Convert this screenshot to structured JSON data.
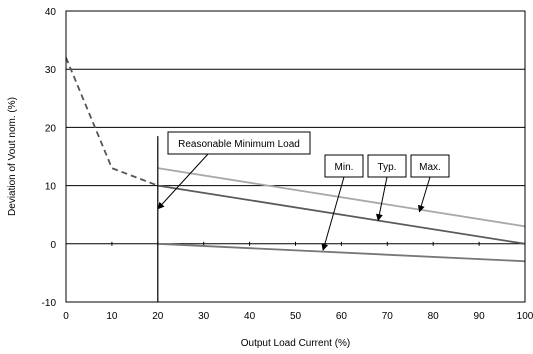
{
  "chart_data": {
    "type": "line",
    "xlabel": "Output Load Current (%)",
    "ylabel": "Deviation of Vout nom. (%)",
    "xlim": [
      0,
      100
    ],
    "ylim": [
      -10,
      40
    ],
    "x_ticks": [
      "0",
      "10",
      "20",
      "30",
      "40",
      "50",
      "60",
      "70",
      "80",
      "90",
      "100"
    ],
    "y_ticks": [
      "-10",
      "0",
      "10",
      "20",
      "30",
      "40"
    ],
    "grid": "horizontal major gridlines",
    "colors": {
      "typ": "#5a5a5a",
      "max": "#a8a8a8",
      "min": "#777777",
      "dashed": "#555555",
      "grid": "#000000"
    },
    "series": [
      {
        "name": "Typ.",
        "x": [
          20,
          100
        ],
        "y": [
          10,
          0
        ]
      },
      {
        "name": "Max.",
        "x": [
          20,
          100
        ],
        "y": [
          13,
          3
        ]
      },
      {
        "name": "Min.",
        "x": [
          20,
          100
        ],
        "y": [
          0,
          -3
        ]
      },
      {
        "x": [
          0,
          10,
          20
        ],
        "y": [
          32,
          13,
          10
        ],
        "style": "dashed"
      }
    ],
    "reference_line": {
      "x": 20,
      "y_from": -10,
      "y_to": 18.5
    },
    "annotations": [
      {
        "text": "Reasonable Minimum Load",
        "points_to": [
          20,
          6
        ]
      },
      {
        "text": "Min.",
        "points_to": [
          56,
          -1.1
        ]
      },
      {
        "text": "Typ.",
        "points_to": [
          68,
          4
        ]
      },
      {
        "text": "Max.",
        "points_to": [
          77,
          5.5
        ]
      }
    ]
  }
}
